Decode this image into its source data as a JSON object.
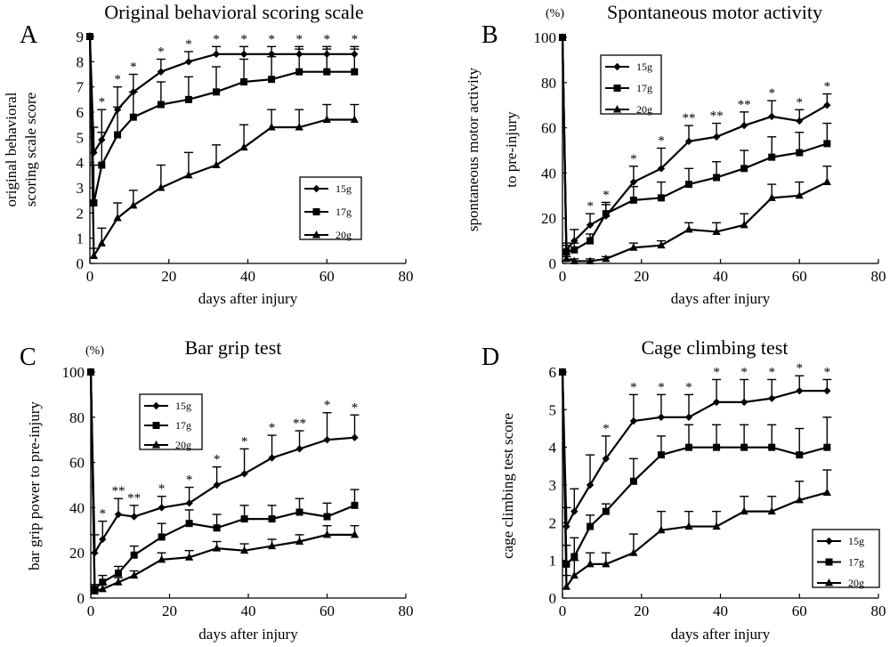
{
  "chart_data": [
    {
      "type": "line",
      "panel": "A",
      "title": "Original behavioral scoring scale",
      "xlabel": "days after injury",
      "ylabel": [
        "original behavioral",
        "scoring scale score"
      ],
      "unit_label": "",
      "xlim": [
        0,
        80
      ],
      "ylim": [
        0,
        9
      ],
      "xticks": [
        0,
        20,
        40,
        60,
        80
      ],
      "yticks": [
        0,
        1,
        2,
        3,
        4,
        5,
        6,
        7,
        8,
        9
      ],
      "grid": false,
      "legend_position": "lower-right",
      "x": [
        0,
        1,
        3,
        7,
        11,
        18,
        25,
        32,
        39,
        46,
        53,
        60,
        67
      ],
      "series": [
        {
          "name": "15g",
          "marker": "diamond",
          "values": [
            9,
            4.4,
            4.9,
            6.1,
            6.8,
            7.6,
            8.0,
            8.3,
            8.3,
            8.3,
            8.3,
            8.3,
            8.3
          ],
          "errors": [
            0,
            1.0,
            1.2,
            0.9,
            0.7,
            0.5,
            0.4,
            0.3,
            0.3,
            0.3,
            0.3,
            0.3,
            0.3
          ]
        },
        {
          "name": "17g",
          "marker": "square",
          "values": [
            9,
            2.4,
            3.9,
            5.1,
            5.8,
            6.3,
            6.5,
            6.8,
            7.2,
            7.3,
            7.6,
            7.6,
            7.6
          ],
          "errors": [
            0,
            1.5,
            1.3,
            1.1,
            1.0,
            0.9,
            0.9,
            1.0,
            0.9,
            0.9,
            0.9,
            0.9,
            0.9
          ]
        },
        {
          "name": "20g",
          "marker": "triangle",
          "values": [
            9,
            0.3,
            0.8,
            1.8,
            2.3,
            3.0,
            3.5,
            3.9,
            4.6,
            5.4,
            5.4,
            5.7,
            5.7
          ],
          "errors": [
            0,
            0.3,
            0.6,
            0.6,
            0.6,
            0.9,
            0.9,
            0.8,
            0.9,
            0.7,
            0.7,
            0.6,
            0.6
          ]
        }
      ],
      "significance": [
        {
          "x": 3,
          "text": "*"
        },
        {
          "x": 7,
          "text": "*"
        },
        {
          "x": 11,
          "text": "*"
        },
        {
          "x": 18,
          "text": "*"
        },
        {
          "x": 25,
          "text": "*"
        },
        {
          "x": 32,
          "text": "*"
        },
        {
          "x": 39,
          "text": "*"
        },
        {
          "x": 46,
          "text": "*"
        },
        {
          "x": 53,
          "text": "*"
        },
        {
          "x": 60,
          "text": "*"
        },
        {
          "x": 67,
          "text": "*"
        }
      ]
    },
    {
      "type": "line",
      "panel": "B",
      "title": "Spontaneous motor activity",
      "xlabel": "days after injury",
      "ylabel": [
        "spontaneous motor activity",
        "to pre-injury"
      ],
      "unit_label": "(%)",
      "xlim": [
        0,
        80
      ],
      "ylim": [
        0,
        100
      ],
      "xticks": [
        0,
        20,
        40,
        60,
        80
      ],
      "yticks": [
        0,
        20,
        40,
        60,
        80,
        100
      ],
      "grid": false,
      "legend_position": "top-left",
      "x": [
        0,
        1,
        3,
        7,
        11,
        18,
        25,
        32,
        39,
        46,
        53,
        60,
        67
      ],
      "series": [
        {
          "name": "15g",
          "marker": "diamond",
          "values": [
            100,
            6,
            10,
            17,
            21,
            36,
            42,
            54,
            56,
            61,
            65,
            63,
            70
          ],
          "errors": [
            0,
            3,
            5,
            5,
            5,
            7,
            9,
            7,
            6,
            6,
            7,
            5,
            5
          ]
        },
        {
          "name": "17g",
          "marker": "square",
          "values": [
            100,
            5,
            6,
            10,
            22,
            28,
            29,
            35,
            38,
            42,
            47,
            49,
            53
          ],
          "errors": [
            0,
            3,
            3,
            3,
            5,
            6,
            7,
            7,
            7,
            8,
            9,
            9,
            9
          ]
        },
        {
          "name": "20g",
          "marker": "triangle",
          "values": [
            100,
            2,
            1,
            1,
            2,
            7,
            8,
            15,
            14,
            17,
            29,
            30,
            36
          ],
          "errors": [
            0,
            1,
            1,
            1,
            1,
            2,
            2,
            3,
            4,
            5,
            6,
            6,
            7
          ]
        }
      ],
      "significance": [
        {
          "x": 7,
          "text": "*"
        },
        {
          "x": 11,
          "text": "*"
        },
        {
          "x": 18,
          "text": "*"
        },
        {
          "x": 25,
          "text": "*"
        },
        {
          "x": 32,
          "text": "**"
        },
        {
          "x": 39,
          "text": "**"
        },
        {
          "x": 46,
          "text": "**"
        },
        {
          "x": 53,
          "text": "*"
        },
        {
          "x": 60,
          "text": "*"
        },
        {
          "x": 67,
          "text": "*"
        }
      ]
    },
    {
      "type": "line",
      "panel": "C",
      "title": "Bar grip test",
      "xlabel": "days after injury",
      "ylabel": [
        "bar grip power to pre-injury"
      ],
      "unit_label": "(%)",
      "xlim": [
        0,
        80
      ],
      "ylim": [
        0,
        100
      ],
      "xticks": [
        0,
        20,
        40,
        60,
        80
      ],
      "yticks": [
        0,
        20,
        40,
        60,
        80,
        100
      ],
      "grid": false,
      "legend_position": "top-left",
      "x": [
        0,
        1,
        3,
        7,
        11,
        18,
        25,
        32,
        39,
        46,
        53,
        60,
        67
      ],
      "series": [
        {
          "name": "15g",
          "marker": "diamond",
          "values": [
            100,
            20,
            26,
            37,
            36,
            40,
            42,
            50,
            55,
            62,
            66,
            70,
            71
          ],
          "errors": [
            0,
            8,
            8,
            7,
            5,
            5,
            7,
            8,
            11,
            10,
            8,
            12,
            10
          ]
        },
        {
          "name": "17g",
          "marker": "square",
          "values": [
            100,
            4,
            7,
            11,
            19,
            27,
            33,
            31,
            35,
            35,
            38,
            36,
            41
          ],
          "errors": [
            0,
            2,
            3,
            3,
            4,
            6,
            6,
            6,
            6,
            6,
            6,
            6,
            7
          ]
        },
        {
          "name": "20g",
          "marker": "triangle",
          "values": [
            100,
            3,
            4,
            7,
            10,
            17,
            18,
            22,
            21,
            23,
            25,
            28,
            28
          ],
          "errors": [
            0,
            1,
            2,
            2,
            2,
            3,
            3,
            3,
            3,
            3,
            3,
            4,
            4
          ]
        }
      ],
      "significance": [
        {
          "x": 3,
          "text": "*"
        },
        {
          "x": 7,
          "text": "**"
        },
        {
          "x": 11,
          "text": "**"
        },
        {
          "x": 18,
          "text": "*"
        },
        {
          "x": 25,
          "text": "*"
        },
        {
          "x": 32,
          "text": "*"
        },
        {
          "x": 39,
          "text": "*"
        },
        {
          "x": 46,
          "text": "*"
        },
        {
          "x": 53,
          "text": "**"
        },
        {
          "x": 60,
          "text": "*"
        },
        {
          "x": 67,
          "text": "*"
        }
      ]
    },
    {
      "type": "line",
      "panel": "D",
      "title": "Cage climbing test",
      "xlabel": "days after injury",
      "ylabel": [
        "cage climbing test score"
      ],
      "unit_label": "",
      "xlim": [
        0,
        80
      ],
      "ylim": [
        0,
        6
      ],
      "xticks": [
        0,
        20,
        40,
        60,
        80
      ],
      "yticks": [
        0,
        1,
        2,
        3,
        4,
        5,
        6
      ],
      "grid": false,
      "legend_position": "lower-right",
      "x": [
        0,
        1,
        3,
        7,
        11,
        18,
        25,
        32,
        39,
        46,
        53,
        60,
        67
      ],
      "series": [
        {
          "name": "15g",
          "marker": "diamond",
          "values": [
            6,
            1.9,
            2.3,
            3.0,
            3.7,
            4.7,
            4.8,
            4.8,
            5.2,
            5.2,
            5.3,
            5.5,
            5.5
          ],
          "errors": [
            0,
            0.5,
            0.6,
            0.8,
            0.6,
            0.7,
            0.6,
            0.6,
            0.6,
            0.6,
            0.5,
            0.4,
            0.3
          ]
        },
        {
          "name": "17g",
          "marker": "square",
          "values": [
            6,
            0.9,
            1.1,
            1.9,
            2.3,
            3.1,
            3.8,
            4.0,
            4.0,
            4.0,
            4.0,
            3.8,
            4.0
          ],
          "errors": [
            0,
            0.5,
            0.5,
            0.3,
            0.2,
            0.6,
            0.5,
            0.6,
            0.6,
            0.6,
            0.6,
            0.7,
            0.8
          ]
        },
        {
          "name": "20g",
          "marker": "triangle",
          "values": [
            6,
            0.3,
            0.6,
            0.9,
            0.9,
            1.2,
            1.8,
            1.9,
            1.9,
            2.3,
            2.3,
            2.6,
            2.8
          ],
          "errors": [
            0,
            0.3,
            0.4,
            0.3,
            0.3,
            0.5,
            0.5,
            0.4,
            0.4,
            0.4,
            0.4,
            0.5,
            0.6
          ]
        }
      ],
      "significance": [
        {
          "x": 11,
          "text": "*"
        },
        {
          "x": 18,
          "text": "*"
        },
        {
          "x": 25,
          "text": "*"
        },
        {
          "x": 32,
          "text": "*"
        },
        {
          "x": 39,
          "text": "*"
        },
        {
          "x": 46,
          "text": "*"
        },
        {
          "x": 53,
          "text": "*"
        },
        {
          "x": 60,
          "text": "*"
        },
        {
          "x": 67,
          "text": "*"
        }
      ]
    }
  ]
}
